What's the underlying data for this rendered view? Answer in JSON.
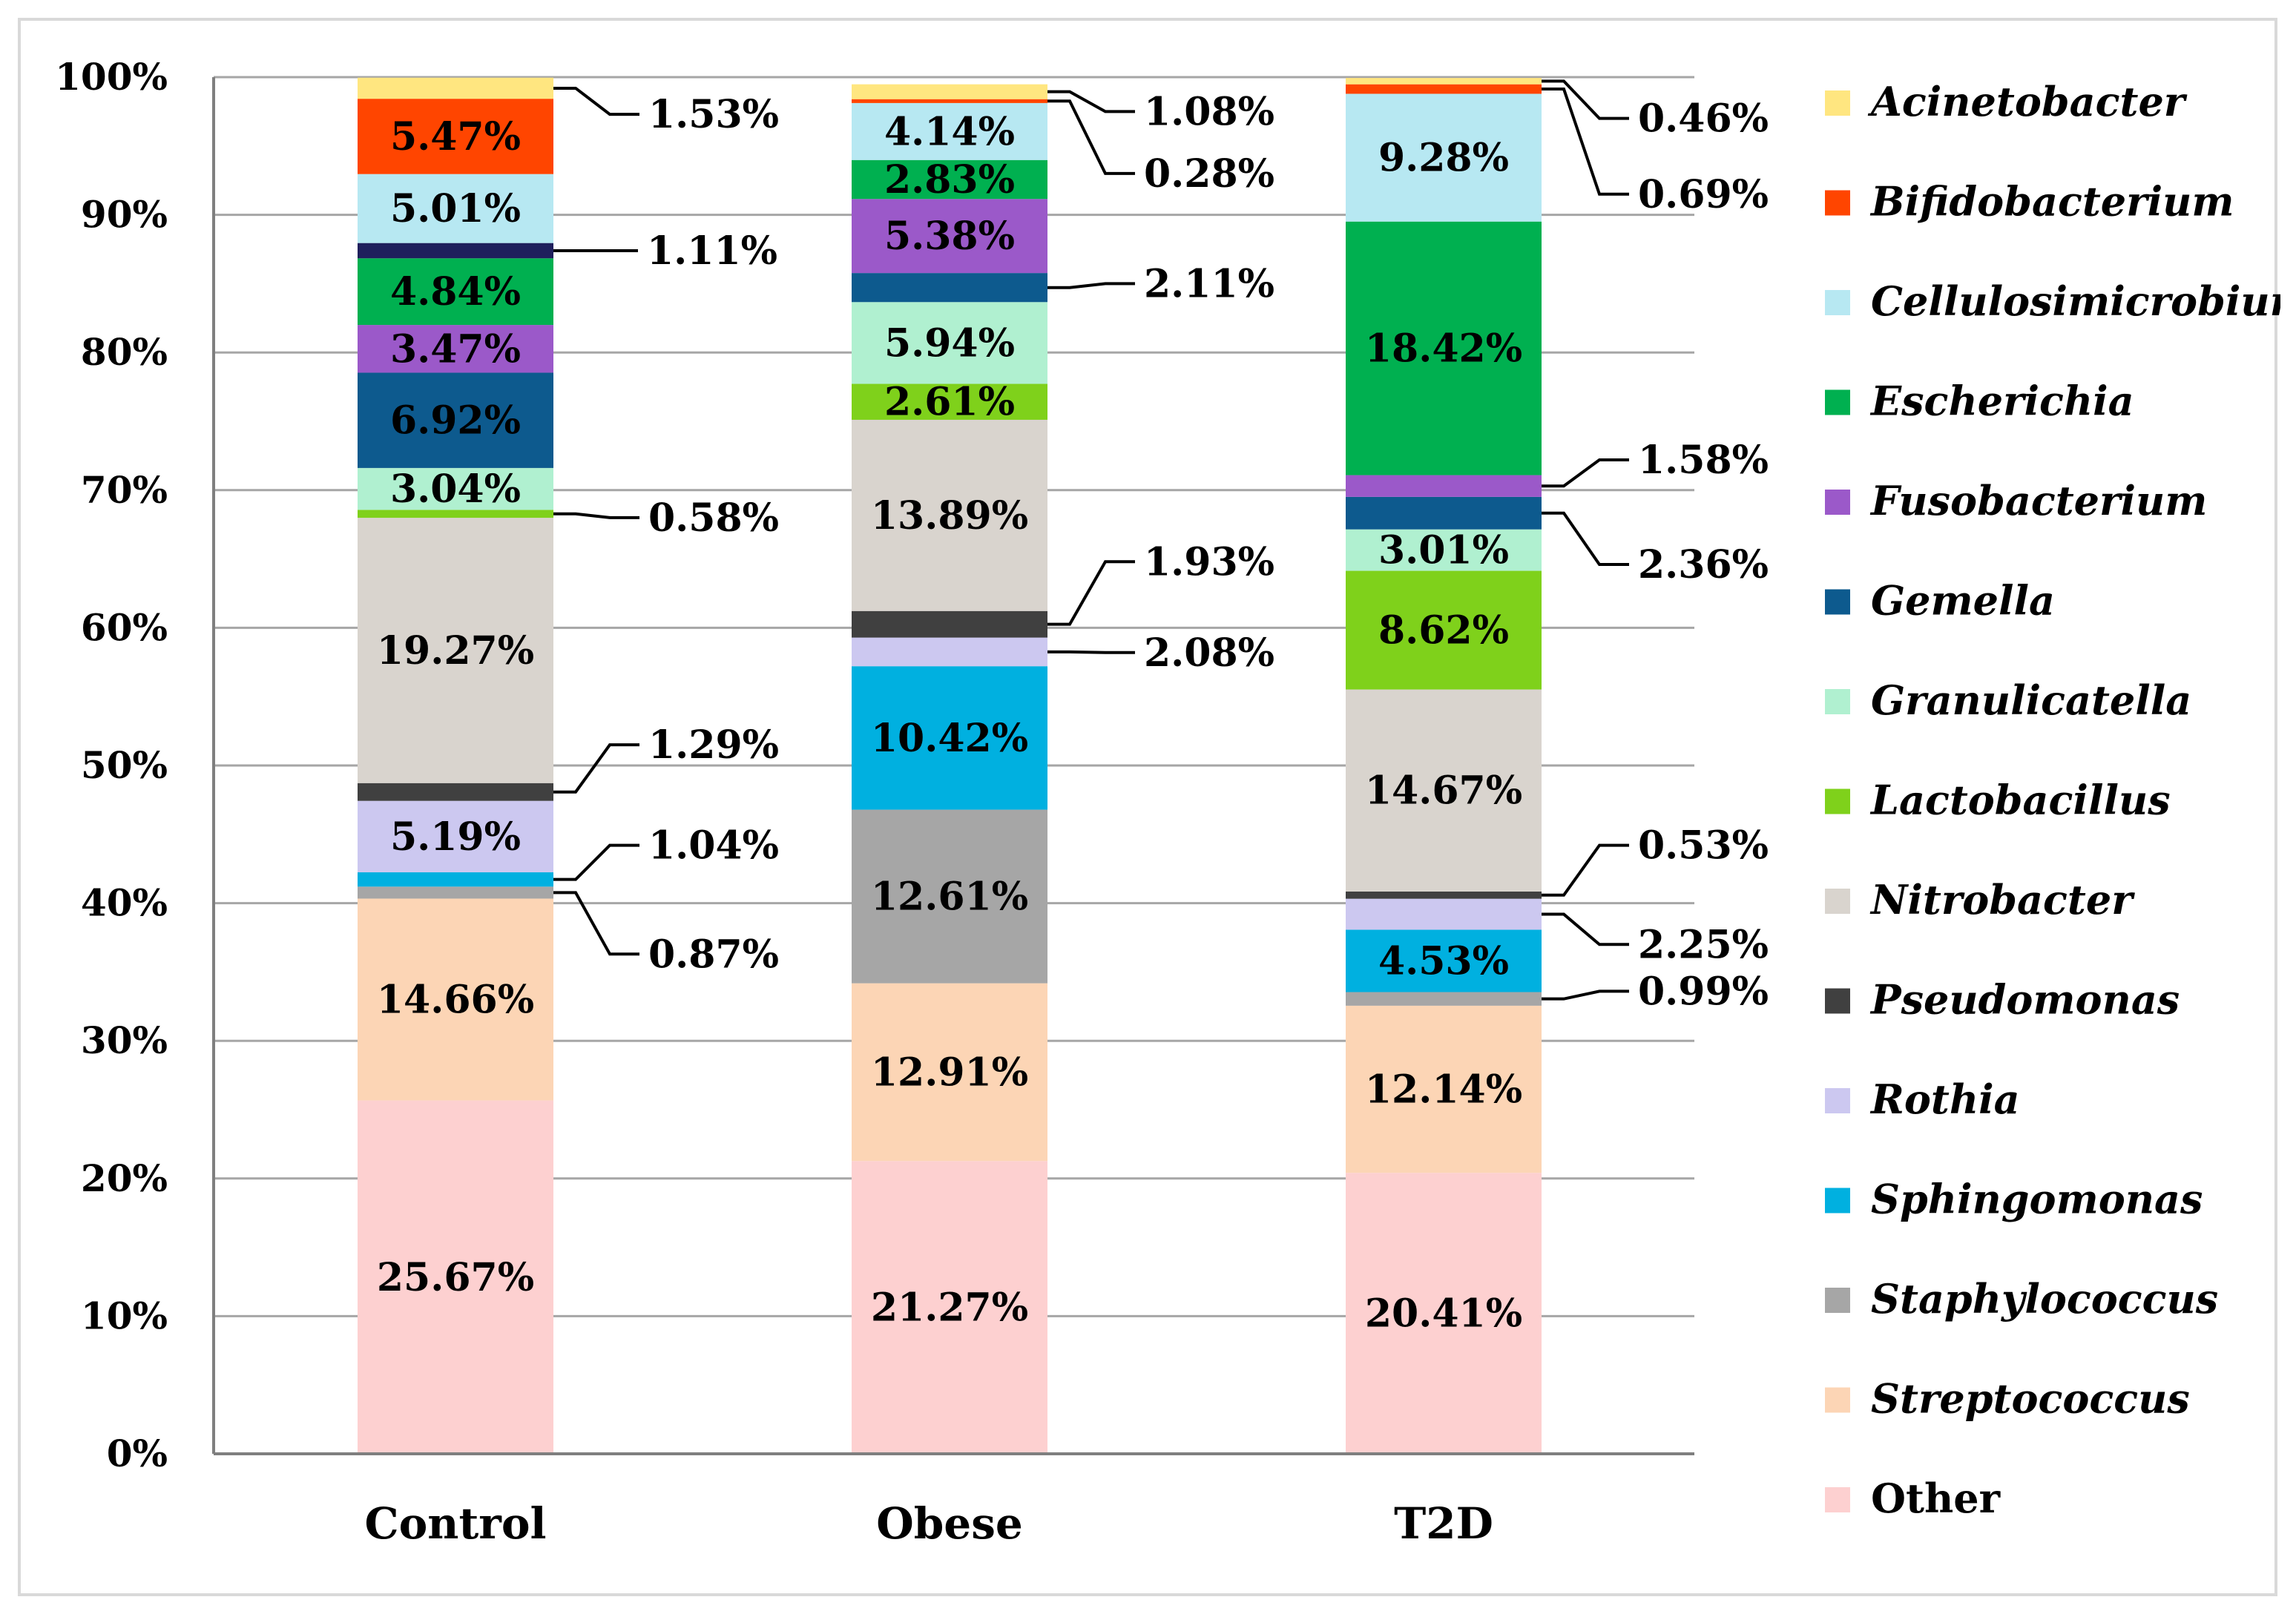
{
  "chart_data": {
    "type": "bar",
    "stacked": true,
    "percent_stacked": true,
    "categories": [
      "Control",
      "Obese",
      "T2D"
    ],
    "ylim": [
      0,
      100
    ],
    "yticks": [
      "0%",
      "10%",
      "20%",
      "30%",
      "40%",
      "50%",
      "60%",
      "70%",
      "80%",
      "90%",
      "100%"
    ],
    "gridlines": true,
    "legend_position": "right",
    "series": [
      {
        "name": "Other",
        "color": "#fdd0d0",
        "italic": false,
        "values": [
          25.67,
          21.27,
          20.41
        ],
        "labels": [
          "25.67%",
          "21.27%",
          "20.41%"
        ]
      },
      {
        "name": "Streptococcus",
        "color": "#fcd5b5",
        "italic": true,
        "values": [
          14.66,
          12.91,
          12.14
        ],
        "labels": [
          "14.66%",
          "12.91%",
          "12.14%"
        ]
      },
      {
        "name": "Staphylococcus",
        "color": "#a6a6a6",
        "italic": true,
        "values": [
          0.87,
          12.61,
          0.99
        ],
        "labels": [
          "0.87%",
          "12.61%",
          "0.99%"
        ]
      },
      {
        "name": "Sphingomonas",
        "color": "#00b0e0",
        "italic": true,
        "values": [
          1.04,
          10.42,
          4.53
        ],
        "labels": [
          "1.04%",
          "10.42%",
          "4.53%"
        ]
      },
      {
        "name": "Rothia",
        "color": "#ccc8f0",
        "italic": true,
        "values": [
          5.19,
          2.08,
          2.25
        ],
        "labels": [
          "5.19%",
          "2.08%",
          "2.25%"
        ]
      },
      {
        "name": "Pseudomonas",
        "color": "#404040",
        "italic": true,
        "values": [
          1.29,
          1.93,
          0.53
        ],
        "labels": [
          "1.29%",
          "1.93%",
          "0.53%"
        ]
      },
      {
        "name": "Nitrobacter",
        "color": "#d9d4ce",
        "italic": true,
        "values": [
          19.27,
          13.89,
          14.67
        ],
        "labels": [
          "19.27%",
          "13.89%",
          "14.67%"
        ]
      },
      {
        "name": "Lactobacillus",
        "color": "#7fd11b",
        "italic": true,
        "values": [
          0.58,
          2.61,
          8.62
        ],
        "labels": [
          "0.58%",
          "2.61%",
          "8.62%"
        ]
      },
      {
        "name": "Granulicatella",
        "color": "#b0f0d0",
        "italic": true,
        "values": [
          3.04,
          5.94,
          3.01
        ],
        "labels": [
          "3.04%",
          "5.94%",
          "3.01%"
        ]
      },
      {
        "name": "Gemella",
        "color": "#0d5a8e",
        "italic": true,
        "values": [
          6.92,
          2.11,
          2.36
        ],
        "labels": [
          "6.92%",
          "2.11%",
          "2.36%"
        ]
      },
      {
        "name": "Fusobacterium",
        "color": "#9b59c9",
        "italic": true,
        "values": [
          3.47,
          5.38,
          1.58
        ],
        "labels": [
          "3.47%",
          "5.38%",
          "1.58%"
        ]
      },
      {
        "name": "Escherichia",
        "color": "#00b050",
        "italic": true,
        "values": [
          4.84,
          2.83,
          18.42
        ],
        "labels": [
          "4.84%",
          "2.83%",
          "18.42%"
        ]
      },
      {
        "name": "Cellulosimicrobium",
        "color": "#b7e8f2",
        "italic": true,
        "values": [
          5.01,
          4.14,
          9.28
        ],
        "labels": [
          "5.01%",
          "4.14%",
          "9.28%"
        ]
      },
      {
        "name": "Bifidobacterium",
        "color": "#ff4500",
        "italic": true,
        "values": [
          5.47,
          0.28,
          0.69
        ],
        "labels": [
          "5.47%",
          "0.28%",
          "0.69%"
        ]
      },
      {
        "name": "Acinetobacter",
        "color": "#ffe680",
        "italic": true,
        "values": [
          1.53,
          1.08,
          0.46
        ],
        "labels": [
          "1.53%",
          "1.08%",
          "0.46%"
        ]
      }
    ],
    "dark_navy_band": {
      "category": "Control",
      "label": "1.11%",
      "color": "#1f1f5c",
      "after_series": "Escherichia"
    }
  }
}
